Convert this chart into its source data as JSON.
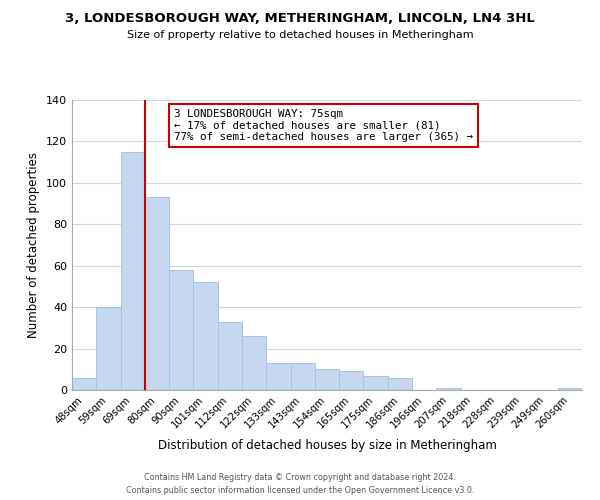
{
  "title": "3, LONDESBOROUGH WAY, METHERINGHAM, LINCOLN, LN4 3HL",
  "subtitle": "Size of property relative to detached houses in Metheringham",
  "xlabel": "Distribution of detached houses by size in Metheringham",
  "ylabel": "Number of detached properties",
  "footer_line1": "Contains HM Land Registry data © Crown copyright and database right 2024.",
  "footer_line2": "Contains public sector information licensed under the Open Government Licence v3.0.",
  "bar_labels": [
    "48sqm",
    "59sqm",
    "69sqm",
    "80sqm",
    "90sqm",
    "101sqm",
    "112sqm",
    "122sqm",
    "133sqm",
    "143sqm",
    "154sqm",
    "165sqm",
    "175sqm",
    "186sqm",
    "196sqm",
    "207sqm",
    "218sqm",
    "228sqm",
    "239sqm",
    "249sqm",
    "260sqm"
  ],
  "bar_values": [
    6,
    40,
    115,
    93,
    58,
    52,
    33,
    26,
    13,
    13,
    10,
    9,
    7,
    6,
    0,
    1,
    0,
    0,
    0,
    0,
    1
  ],
  "bar_color": "#c5d8f0",
  "bar_edge_color": "#a8c4e0",
  "ylim": [
    0,
    140
  ],
  "yticks": [
    0,
    20,
    40,
    60,
    80,
    100,
    120,
    140
  ],
  "red_line_index": 2,
  "annotation_title": "3 LONDESBOROUGH WAY: 75sqm",
  "annotation_line1": "← 17% of detached houses are smaller (81)",
  "annotation_line2": "77% of semi-detached houses are larger (365) →",
  "annotation_box_color": "#ffffff",
  "annotation_box_edge_color": "#cc0000",
  "red_line_color": "#cc0000",
  "background_color": "#ffffff",
  "grid_color": "#c8d8ea"
}
